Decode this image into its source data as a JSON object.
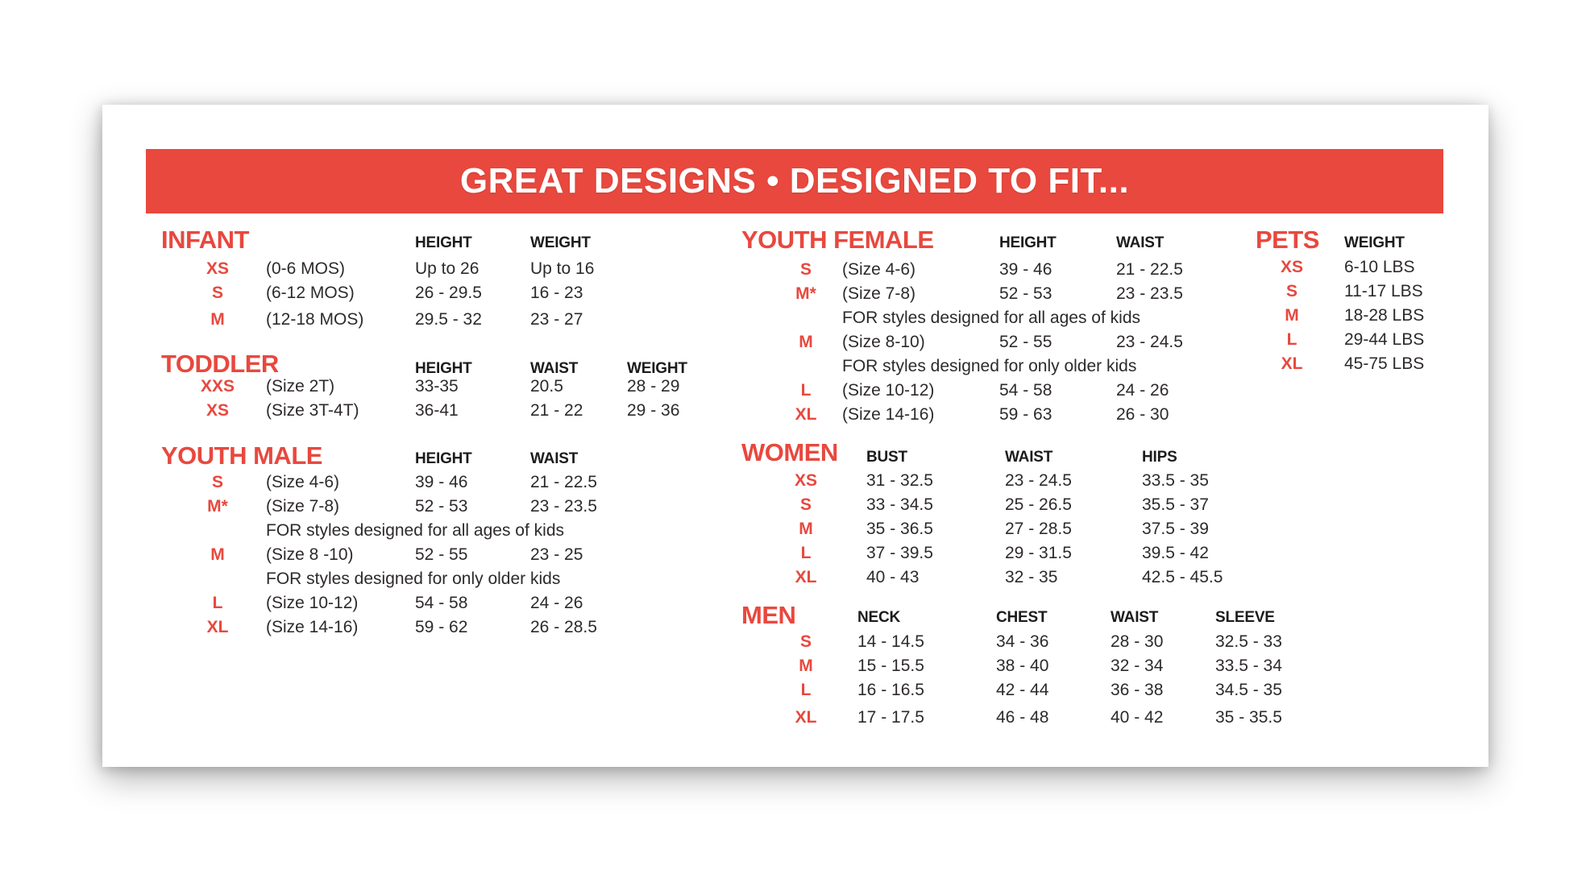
{
  "banner": {
    "title": "GREAT DESIGNS • DESIGNED TO FIT..."
  },
  "colors": {
    "accent_red": "#E8483E",
    "banner_text": "#FFFFFF",
    "body_text": "#2E2A2B",
    "header_text": "#1D1B1C",
    "card_background": "#FFFFFF"
  },
  "sections": [
    {
      "id": "infant",
      "title": "INFANT",
      "columns": [
        "HEIGHT",
        "WEIGHT"
      ],
      "rows": [
        {
          "size": "XS",
          "desc": "(0-6 MOS)",
          "values": [
            "Up to 26",
            "Up to 16"
          ]
        },
        {
          "size": "S",
          "desc": "(6-12 MOS)",
          "values": [
            "26 - 29.5",
            "16 - 23"
          ]
        },
        {
          "size": "M",
          "desc": "(12-18 MOS)",
          "values": [
            "29.5 - 32",
            "23 - 27"
          ]
        }
      ]
    },
    {
      "id": "toddler",
      "title": "TODDLER",
      "columns": [
        "HEIGHT",
        "WAIST",
        "WEIGHT"
      ],
      "rows": [
        {
          "size": "XXS",
          "desc": "(Size 2T)",
          "values": [
            "33-35",
            "20.5",
            "28 - 29"
          ]
        },
        {
          "size": "XS",
          "desc": "(Size 3T-4T)",
          "values": [
            "36-41",
            "21 - 22",
            "29 - 36"
          ]
        }
      ]
    },
    {
      "id": "youth-male",
      "title": "YOUTH MALE",
      "columns": [
        "HEIGHT",
        "WAIST"
      ],
      "rows": [
        {
          "size": "S",
          "desc": "(Size 4-6)",
          "values": [
            "39 - 46",
            "21 - 22.5"
          ]
        },
        {
          "size": "M*",
          "desc": "(Size 7-8)",
          "values": [
            "52 - 53",
            "23 - 23.5"
          ]
        },
        {
          "note": "FOR styles designed for all ages of kids"
        },
        {
          "size": "M",
          "desc": "(Size 8 -10)",
          "values": [
            "52 - 55",
            "23 - 25"
          ]
        },
        {
          "note": "FOR styles designed for only older kids"
        },
        {
          "size": "L",
          "desc": "(Size 10-12)",
          "values": [
            "54 - 58",
            "24 - 26"
          ]
        },
        {
          "size": "XL",
          "desc": "(Size 14-16)",
          "values": [
            "59 - 62",
            "26 - 28.5"
          ]
        }
      ]
    },
    {
      "id": "youth-female",
      "title": "YOUTH FEMALE",
      "columns": [
        "HEIGHT",
        "WAIST"
      ],
      "rows": [
        {
          "size": "S",
          "desc": "(Size 4-6)",
          "values": [
            "39 - 46",
            "21 - 22.5"
          ]
        },
        {
          "size": "M*",
          "desc": "(Size 7-8)",
          "values": [
            "52 - 53",
            "23 - 23.5"
          ]
        },
        {
          "note": "FOR styles designed for all ages of kids"
        },
        {
          "size": "M",
          "desc": "(Size 8-10)",
          "values": [
            "52 - 55",
            "23 - 24.5"
          ]
        },
        {
          "note": "FOR styles designed for only older kids"
        },
        {
          "size": "L",
          "desc": "(Size 10-12)",
          "values": [
            "54 - 58",
            "24 - 26"
          ]
        },
        {
          "size": "XL",
          "desc": "(Size 14-16)",
          "values": [
            "59 - 63",
            "26 - 30"
          ]
        }
      ]
    },
    {
      "id": "women",
      "title": "WOMEN",
      "columns": [
        "BUST",
        "WAIST",
        "HIPS"
      ],
      "rows": [
        {
          "size": "XS",
          "values": [
            "31 - 32.5",
            "23 - 24.5",
            "33.5 - 35"
          ]
        },
        {
          "size": "S",
          "values": [
            "33 - 34.5",
            "25 - 26.5",
            "35.5 - 37"
          ]
        },
        {
          "size": "M",
          "values": [
            "35 - 36.5",
            "27 - 28.5",
            "37.5 - 39"
          ]
        },
        {
          "size": "L",
          "values": [
            "37 - 39.5",
            "29 - 31.5",
            "39.5 - 42"
          ]
        },
        {
          "size": "XL",
          "values": [
            "40 - 43",
            "32 - 35",
            "42.5 - 45.5"
          ]
        }
      ]
    },
    {
      "id": "men",
      "title": "MEN",
      "columns": [
        "NECK",
        "CHEST",
        "WAIST",
        "SLEEVE"
      ],
      "rows": [
        {
          "size": "S",
          "values": [
            "14 - 14.5",
            "34 - 36",
            "28 - 30",
            "32.5 - 33"
          ]
        },
        {
          "size": "M",
          "values": [
            "15 - 15.5",
            "38 - 40",
            "32 - 34",
            "33.5 - 34"
          ]
        },
        {
          "size": "L",
          "values": [
            "16 - 16.5",
            "42 - 44",
            "36 - 38",
            "34.5 - 35"
          ]
        },
        {
          "size": "XL",
          "values": [
            "17 - 17.5",
            "46 - 48",
            "40 - 42",
            "35 - 35.5"
          ]
        }
      ]
    },
    {
      "id": "pets",
      "title": "PETS",
      "columns": [
        "WEIGHT"
      ],
      "rows": [
        {
          "size": "XS",
          "values": [
            "6-10 LBS"
          ]
        },
        {
          "size": "S",
          "values": [
            "11-17 LBS"
          ]
        },
        {
          "size": "M",
          "values": [
            "18-28 LBS"
          ]
        },
        {
          "size": "L",
          "values": [
            "29-44 LBS"
          ]
        },
        {
          "size": "XL",
          "values": [
            "45-75 LBS"
          ]
        }
      ]
    }
  ]
}
